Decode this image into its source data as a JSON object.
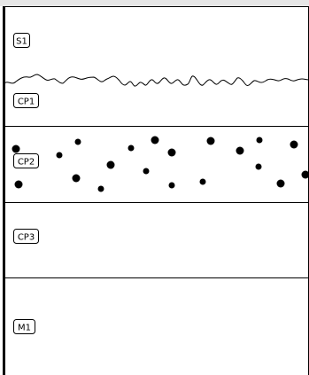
{
  "diagram": {
    "zones": [
      {
        "id": "s1",
        "label": "S1"
      },
      {
        "id": "cp1",
        "label": "CP1"
      },
      {
        "id": "cp2",
        "label": "CP2"
      },
      {
        "id": "cp3",
        "label": "CP3"
      },
      {
        "id": "m1",
        "label": "M1"
      }
    ],
    "colors": {
      "background": "#ffffff",
      "line": "#000000",
      "top_band": "#e6e6e6"
    }
  }
}
